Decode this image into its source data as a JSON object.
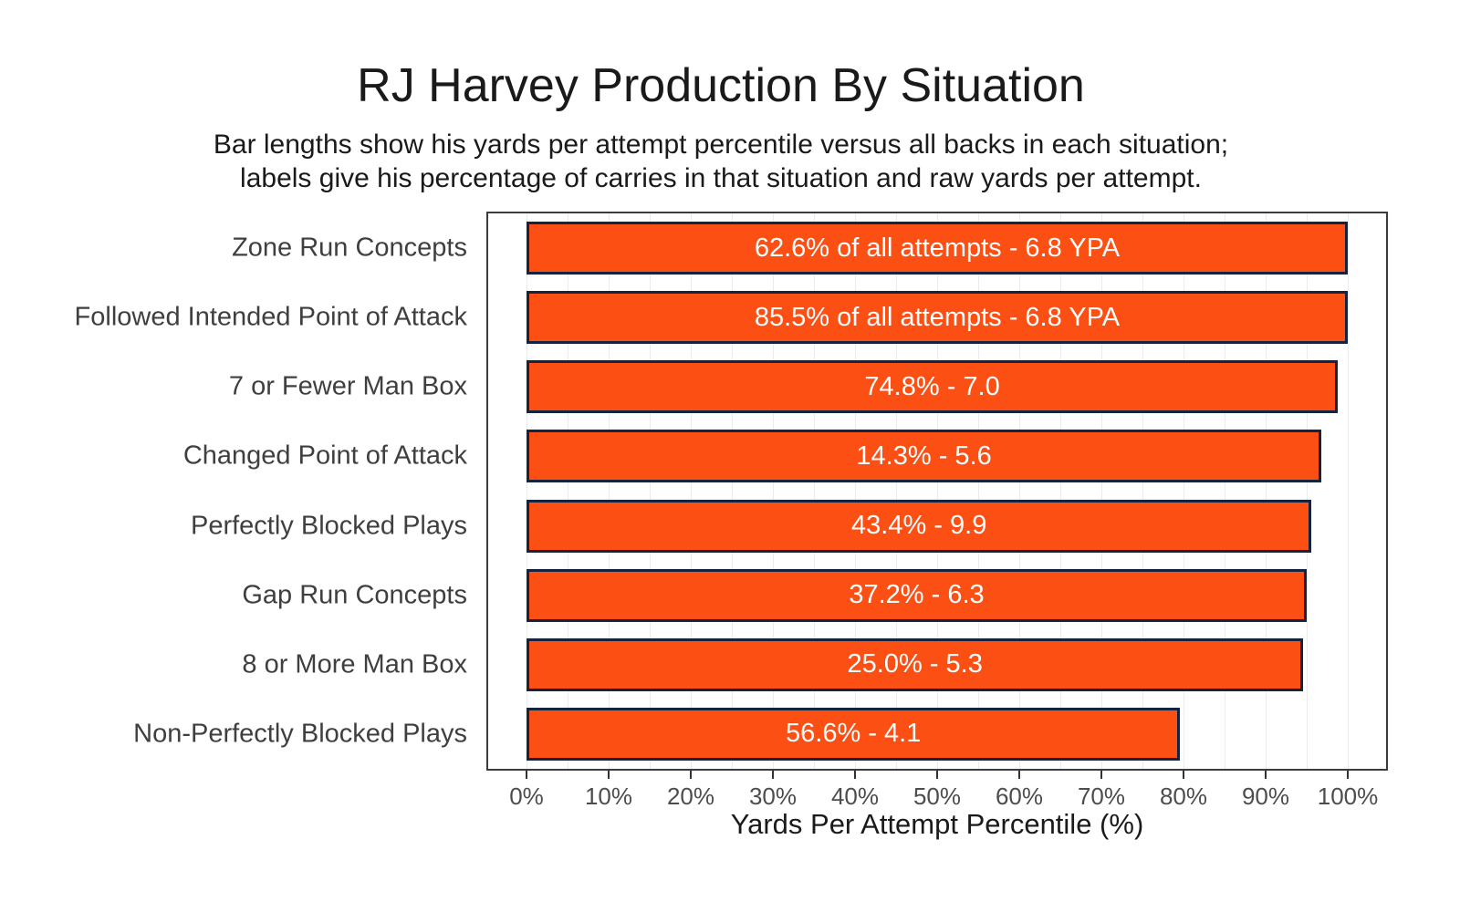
{
  "title": "RJ Harvey Production By Situation",
  "subtitle_line1": "Bar lengths show his yards per attempt percentile versus all backs in each situation;",
  "subtitle_line2": "labels give his percentage of carries in that situation and raw yards per attempt.",
  "chart_data": {
    "type": "bar",
    "orientation": "horizontal",
    "title": "RJ Harvey Production By Situation",
    "subtitle": "Bar lengths show his yards per attempt percentile versus all backs in each situation; labels give his percentage of carries in that situation and raw yards per attempt.",
    "categories": [
      "Zone Run Concepts",
      "Followed Intended Point of Attack",
      "7 or Fewer Man Box",
      "Changed Point of Attack",
      "Perfectly Blocked Plays",
      "Gap Run Concepts",
      "8 or More Man Box",
      "Non-Perfectly Blocked Plays"
    ],
    "values": [
      100,
      100,
      98.8,
      96.8,
      95.6,
      95.0,
      94.6,
      79.6
    ],
    "bar_labels": [
      "62.6% of all attempts - 6.8 YPA",
      "85.5% of all attempts - 6.8 YPA",
      "74.8% - 7.0",
      "14.3% - 5.6",
      "43.4% - 9.9",
      "37.2% - 6.3",
      "25.0% - 5.3",
      "56.6% - 4.1"
    ],
    "xlabel": "Yards Per Attempt Percentile (%)",
    "xlim": [
      0,
      100
    ],
    "x_ticks": [
      0,
      10,
      20,
      30,
      40,
      50,
      60,
      70,
      80,
      90,
      100
    ],
    "x_tick_labels": [
      "0%",
      "10%",
      "20%",
      "30%",
      "40%",
      "50%",
      "60%",
      "70%",
      "80%",
      "90%",
      "100%"
    ],
    "gridlines": "vertical, every 5%, light gray",
    "legend": "none",
    "colors": {
      "bar_fill": "#FB4F14",
      "bar_border": "#142340",
      "bar_label_text": "#FFFFFF",
      "gridline": "#ECECEC",
      "panel_border": "#3C3C3C",
      "tick_text": "#4D4D4D",
      "category_text": "#3F3F3F",
      "title_text": "#1A1A1A"
    }
  }
}
